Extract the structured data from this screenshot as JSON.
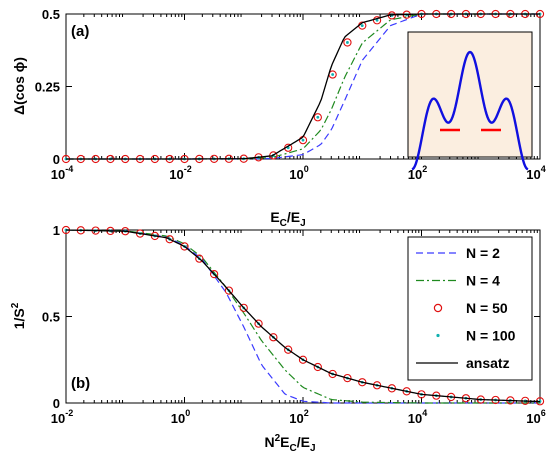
{
  "colors": {
    "N2": "#3b3bff",
    "N4": "#1f8a1f",
    "N50": "#e01010",
    "N100": "#10b0b0",
    "ansatz": "#000000",
    "inset_bg": "#fbeee0",
    "inset_curve": "#1010e0",
    "inset_marker": "#ff0000"
  },
  "chart_data": [
    {
      "type": "line",
      "panel_label": "(a)",
      "xscale": "log",
      "xlim": [
        0.0001,
        10000
      ],
      "ylim": [
        0,
        0.5
      ],
      "xlabel": {
        "base": "E",
        "sub1": "C",
        "mid": "/E",
        "sub2": "J"
      },
      "ylabel": "Δ(cos ϕ)",
      "xticks": [
        {
          "base": "10",
          "exp": "-4"
        },
        {
          "base": "10",
          "exp": "-2"
        },
        {
          "base": "10",
          "exp": "0"
        },
        {
          "base": "10",
          "exp": "2"
        },
        {
          "base": "10",
          "exp": "4"
        }
      ],
      "yticks": [
        "0",
        "0.25",
        "0.5"
      ],
      "x": [
        0.0001,
        0.001,
        0.01,
        0.1,
        0.3,
        1,
        2,
        3,
        5,
        10,
        30,
        100,
        1000,
        10000
      ],
      "series": [
        {
          "id": "N2",
          "style": "dashed",
          "y": [
            0,
            0,
            0,
            0,
            0.002,
            0.015,
            0.05,
            0.1,
            0.2,
            0.34,
            0.46,
            0.5,
            0.5,
            0.5
          ]
        },
        {
          "id": "N4",
          "style": "dashdot",
          "y": [
            0,
            0,
            0,
            0,
            0.005,
            0.035,
            0.1,
            0.17,
            0.28,
            0.4,
            0.48,
            0.5,
            0.5,
            0.5
          ]
        },
        {
          "id": "N50",
          "style": "circles",
          "y": [
            0,
            0,
            0,
            0.001,
            0.01,
            0.065,
            0.16,
            0.28,
            0.39,
            0.46,
            0.495,
            0.5,
            0.5,
            0.5
          ]
        },
        {
          "id": "N100",
          "style": "dots",
          "y": [
            0,
            0,
            0,
            0.001,
            0.01,
            0.065,
            0.16,
            0.28,
            0.39,
            0.46,
            0.495,
            0.5,
            0.5,
            0.5
          ]
        },
        {
          "id": "ansatz",
          "style": "solid",
          "y": [
            0,
            0,
            0,
            0.001,
            0.011,
            0.075,
            0.2,
            0.32,
            0.42,
            0.47,
            0.497,
            0.5,
            0.5,
            0.5
          ]
        }
      ],
      "inset": {
        "description_free": true
      }
    },
    {
      "type": "line",
      "panel_label": "(b)",
      "xscale": "log",
      "xlim": [
        0.01,
        1000000
      ],
      "ylim": [
        0,
        1
      ],
      "xlabel": {
        "base": "N",
        "sup": "2",
        "rest": "E",
        "sub1": "C",
        "mid": "/E",
        "sub2": "J"
      },
      "ylabel": {
        "base": "1/S",
        "sup": "2"
      },
      "xticks": [
        {
          "base": "10",
          "exp": "-2"
        },
        {
          "base": "10",
          "exp": "0"
        },
        {
          "base": "10",
          "exp": "2"
        },
        {
          "base": "10",
          "exp": "4"
        },
        {
          "base": "10",
          "exp": "6"
        }
      ],
      "yticks": [
        "0",
        "0.5",
        "1"
      ],
      "x": [
        0.01,
        0.1,
        0.5,
        1,
        2,
        5,
        10,
        20,
        50,
        100,
        300,
        1000,
        10000,
        100000,
        1000000
      ],
      "series": [
        {
          "id": "N2",
          "name": "N = 2",
          "style": "dashed",
          "y": [
            1,
            0.995,
            0.96,
            0.91,
            0.83,
            0.64,
            0.44,
            0.22,
            0.05,
            0.01,
            0,
            0,
            0,
            0,
            0
          ]
        },
        {
          "id": "N4",
          "name": "N = 4",
          "style": "dashdot",
          "y": [
            1,
            0.995,
            0.965,
            0.92,
            0.84,
            0.67,
            0.52,
            0.36,
            0.19,
            0.09,
            0.02,
            0.005,
            0,
            0,
            0
          ]
        },
        {
          "id": "N50",
          "name": "N = 50",
          "style": "circles",
          "y": [
            1,
            0.993,
            0.955,
            0.905,
            0.82,
            0.67,
            0.55,
            0.44,
            0.32,
            0.25,
            0.17,
            0.12,
            0.05,
            0.02,
            0.01
          ]
        },
        {
          "id": "N100",
          "name": "N = 100",
          "style": "dots",
          "y": [
            1,
            0.993,
            0.955,
            0.905,
            0.82,
            0.67,
            0.55,
            0.44,
            0.32,
            0.25,
            0.17,
            0.12,
            0.05,
            0.02,
            0.01
          ]
        },
        {
          "id": "ansatz",
          "name": "ansatz",
          "style": "solid",
          "y": [
            1,
            0.993,
            0.955,
            0.905,
            0.82,
            0.67,
            0.55,
            0.44,
            0.32,
            0.25,
            0.17,
            0.12,
            0.05,
            0.02,
            0.008
          ]
        }
      ]
    }
  ]
}
